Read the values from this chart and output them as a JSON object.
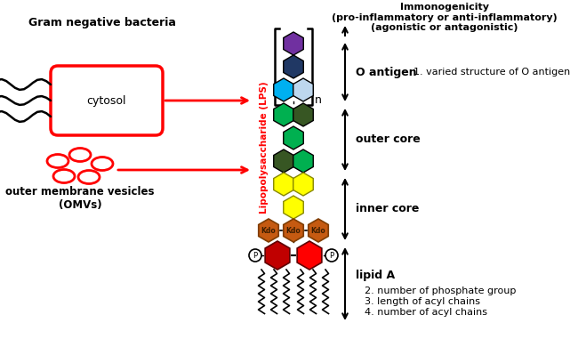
{
  "fig_width": 6.5,
  "fig_height": 3.81,
  "bg_color": "#ffffff",
  "lps_label": "Lipopolysaccharide (LPS)",
  "lps_label_color": "#ff0000",
  "immuno_title": "Immonogenicity\n(pro-inflammatory or anti-inflammatory)\n(agonistic or antagonistic)",
  "o_antigen_label": "O antigen",
  "outer_core_label": "outer core",
  "inner_core_label": "inner core",
  "lipid_a_label": "lipid A",
  "property1": "1. varied structure of O antigen",
  "property2": "2. number of phosphate group",
  "property3": "3. length of acyl chains",
  "property4": "4. number of acyl chains",
  "gram_neg_label": "Gram negative bacteria",
  "cytosol_label": "cytosol",
  "omv_label": "outer membrane vesicles\n(OMVs)",
  "n_label": "n",
  "kdo_label": "Kdo",
  "hex_colors": {
    "purple": "#7030a0",
    "dark_blue": "#203864",
    "cyan": "#00b0f0",
    "light_blue": "#bdd7ee",
    "dark_green": "#375623",
    "green": "#00b050",
    "yellow": "#ffff00",
    "orange": "#c55a11",
    "red": "#ff0000",
    "dark_red": "#c00000"
  }
}
